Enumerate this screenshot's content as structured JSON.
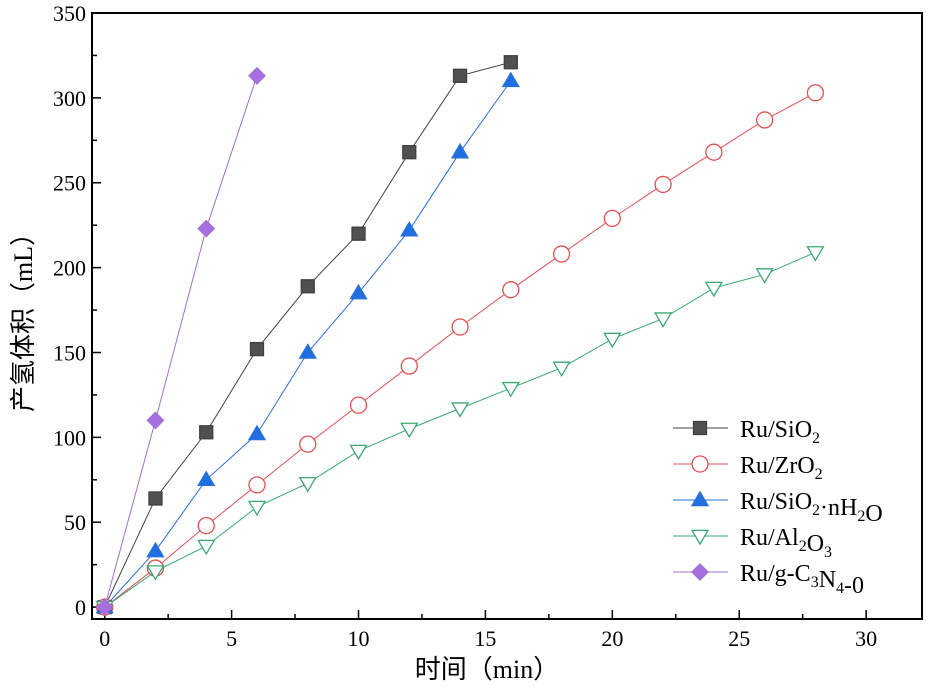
{
  "chart_data": {
    "type": "line",
    "xlabel": "时间（min）",
    "ylabel": "产氢体积（mL）",
    "xlim": [
      -0.5,
      32.2
    ],
    "ylim": [
      -7,
      350
    ],
    "xticks": [
      0,
      5,
      10,
      15,
      20,
      25,
      30
    ],
    "yticks": [
      0,
      50,
      100,
      150,
      200,
      250,
      300,
      350
    ],
    "grid": false,
    "legend_position": "bottom-right",
    "series": [
      {
        "name": "Ru/SiO2",
        "label_parts": [
          [
            "Ru/SiO",
            ""
          ],
          [
            "2",
            "sub"
          ]
        ],
        "color": "#404040",
        "marker": "square",
        "marker_fill": "#505050",
        "x": [
          0,
          2,
          4,
          6,
          8,
          10,
          12,
          14,
          16
        ],
        "y": [
          0,
          64,
          103,
          152,
          189,
          220,
          268,
          313,
          321
        ]
      },
      {
        "name": "Ru/ZrO2",
        "label_parts": [
          [
            "Ru/ZrO",
            ""
          ],
          [
            "2",
            "sub"
          ]
        ],
        "color": "#e05050",
        "marker": "circle",
        "marker_fill": "none",
        "x": [
          0,
          2,
          4,
          6,
          8,
          10,
          12,
          14,
          16,
          18,
          20,
          22,
          24,
          26,
          28
        ],
        "y": [
          0,
          23,
          48,
          72,
          96,
          119,
          142,
          165,
          187,
          208,
          229,
          249,
          268,
          287,
          303
        ]
      },
      {
        "name": "Ru/SiO2·nH2O",
        "label_parts": [
          [
            "Ru/SiO",
            ""
          ],
          [
            "2",
            "sub"
          ],
          [
            "·nH",
            ""
          ],
          [
            "2",
            "sub"
          ],
          [
            "O",
            ""
          ]
        ],
        "color": "#2a6fd6",
        "marker": "triangle-up",
        "marker_fill": "#1f6fe0",
        "x": [
          0,
          2,
          4,
          6,
          8,
          10,
          12,
          14,
          16
        ],
        "y": [
          0,
          33,
          75,
          102,
          150,
          185,
          222,
          268,
          310
        ]
      },
      {
        "name": "Ru/Al2O3",
        "label_parts": [
          [
            "Ru/Al",
            ""
          ],
          [
            "2",
            "sub"
          ],
          [
            "O",
            ""
          ],
          [
            "3",
            "sub"
          ]
        ],
        "color": "#3aa872",
        "marker": "triangle-down",
        "marker_fill": "none",
        "x": [
          0,
          2,
          4,
          6,
          8,
          10,
          12,
          14,
          16,
          18,
          20,
          22,
          24,
          26,
          28
        ],
        "y": [
          0,
          21,
          36,
          59,
          73,
          92,
          105,
          117,
          129,
          141,
          158,
          170,
          188,
          196,
          209
        ]
      },
      {
        "name": "Ru/g-C3N4-0",
        "label_parts": [
          [
            "Ru/g-C",
            ""
          ],
          [
            "3",
            "sub"
          ],
          [
            "N",
            ""
          ],
          [
            "4",
            "sub"
          ],
          [
            "-0",
            ""
          ]
        ],
        "color": "#a070d0",
        "marker": "diamond",
        "marker_fill": "#a66ee0",
        "x": [
          0,
          2,
          4,
          6
        ],
        "y": [
          0,
          110,
          223,
          313
        ]
      }
    ]
  }
}
